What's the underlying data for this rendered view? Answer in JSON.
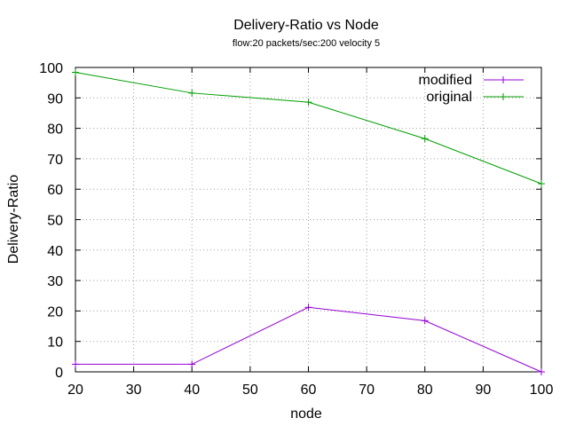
{
  "chart_data": {
    "type": "line",
    "title": "Delivery-Ratio vs Node",
    "subtitle": "flow:20  packets/sec:200 velocity 5",
    "xlabel": "node",
    "ylabel": "Delivery-Ratio",
    "xlim": [
      20,
      100
    ],
    "ylim": [
      0,
      100
    ],
    "xticks": [
      20,
      30,
      40,
      50,
      60,
      70,
      80,
      90,
      100
    ],
    "yticks": [
      0,
      10,
      20,
      30,
      40,
      50,
      60,
      70,
      80,
      90,
      100
    ],
    "grid": true,
    "legend_position": "top-right",
    "series": [
      {
        "name": "modified",
        "color": "#9400d3",
        "x": [
          20,
          40,
          60,
          80,
          100
        ],
        "y": [
          2.5,
          2.5,
          21.2,
          16.8,
          0
        ]
      },
      {
        "name": "original",
        "color": "#009e00",
        "x": [
          20,
          40,
          60,
          80,
          100
        ],
        "y": [
          98.4,
          91.6,
          88.6,
          76.6,
          61.8
        ]
      }
    ]
  }
}
